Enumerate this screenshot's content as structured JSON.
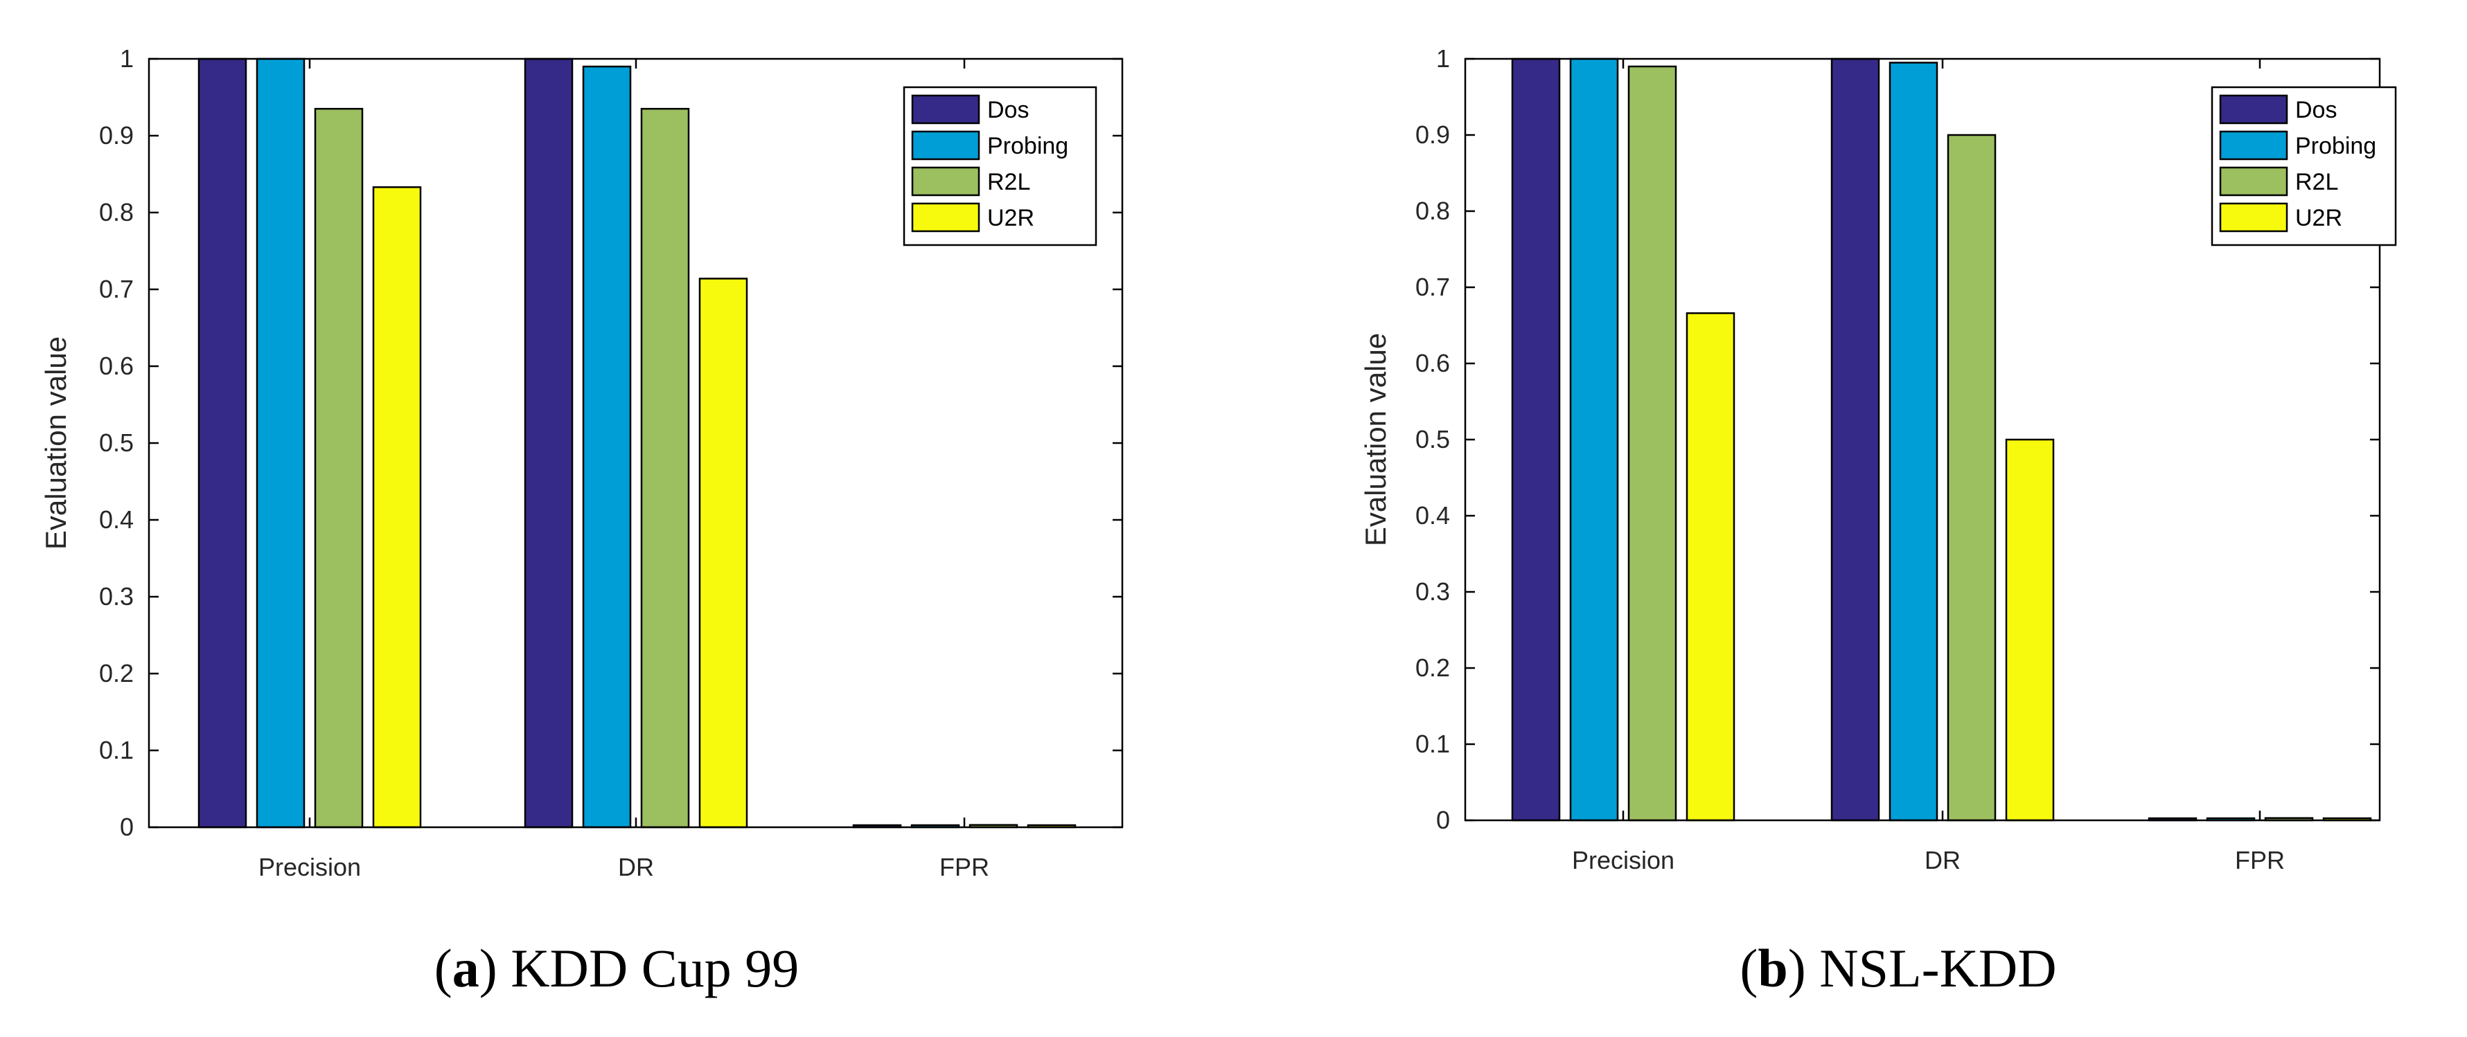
{
  "chart_data": [
    {
      "type": "bar",
      "title": "",
      "caption": {
        "prefix": "(",
        "letter": "a",
        "suffix": ") KDD Cup 99"
      },
      "xlabel": "",
      "ylabel": "Evaluation value",
      "ylim": [
        0,
        1
      ],
      "yticks": [
        "0",
        "0.1",
        "0.2",
        "0.3",
        "0.4",
        "0.5",
        "0.6",
        "0.7",
        "0.8",
        "0.9",
        "1"
      ],
      "categories": [
        "Precision",
        "DR",
        "FPR"
      ],
      "legend_position": "top-right",
      "series": [
        {
          "name": "Dos",
          "color": "#352a87",
          "values": [
            1.0,
            1.0,
            0.002
          ]
        },
        {
          "name": "Probing",
          "color": "#009ed6",
          "values": [
            1.0,
            0.99,
            0.001
          ]
        },
        {
          "name": "R2L",
          "color": "#9cbf60",
          "values": [
            0.935,
            0.935,
            0.003
          ]
        },
        {
          "name": "U2R",
          "color": "#f8fa0d",
          "values": [
            0.833,
            0.714,
            0.001
          ]
        }
      ]
    },
    {
      "type": "bar",
      "title": "",
      "caption": {
        "prefix": "(",
        "letter": "b",
        "suffix": ") NSL-KDD"
      },
      "xlabel": "",
      "ylabel": "Evaluation value",
      "ylim": [
        0,
        1
      ],
      "yticks": [
        "0",
        "0.1",
        "0.2",
        "0.3",
        "0.4",
        "0.5",
        "0.6",
        "0.7",
        "0.8",
        "0.9",
        "1"
      ],
      "categories": [
        "Precision",
        "DR",
        "FPR"
      ],
      "legend_position": "top-right",
      "series": [
        {
          "name": "Dos",
          "color": "#352a87",
          "values": [
            1.0,
            1.0,
            0.002
          ]
        },
        {
          "name": "Probing",
          "color": "#009ed6",
          "values": [
            1.0,
            0.995,
            0.001
          ]
        },
        {
          "name": "R2L",
          "color": "#9cbf60",
          "values": [
            0.99,
            0.9,
            0.003
          ]
        },
        {
          "name": "U2R",
          "color": "#f8fa0d",
          "values": [
            0.666,
            0.5,
            0.001
          ]
        }
      ]
    }
  ]
}
